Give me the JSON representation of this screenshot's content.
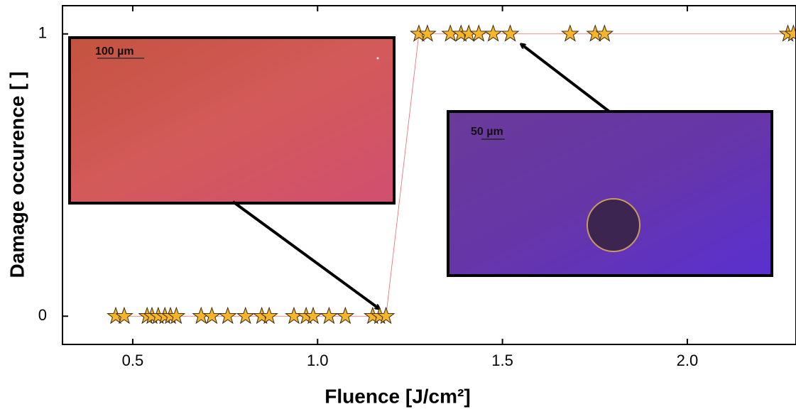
{
  "chart_data": {
    "type": "scatter",
    "x_label": "Fluence [J/cm²]",
    "y_label": "Damage occurence [ ]",
    "x": [
      0.454,
      0.477,
      0.539,
      0.552,
      0.569,
      0.587,
      0.602,
      0.618,
      0.685,
      0.714,
      0.757,
      0.805,
      0.849,
      0.869,
      0.936,
      0.969,
      0.988,
      1.031,
      1.075,
      1.149,
      1.168,
      1.185,
      1.274,
      1.297,
      1.359,
      1.388,
      1.409,
      1.436,
      1.475,
      1.521,
      1.683,
      1.751,
      1.776,
      2.272,
      2.287
    ],
    "values": [
      0,
      0,
      0,
      0,
      0,
      0,
      0,
      0,
      0,
      0,
      0,
      0,
      0,
      0,
      0,
      0,
      0,
      0,
      0,
      0,
      0,
      0,
      1,
      1,
      1,
      1,
      1,
      1,
      1,
      1,
      1,
      1,
      1,
      1,
      1
    ],
    "color": "#f7b52c",
    "line_color": "#e36a6a",
    "xlim": [
      0.31,
      2.294
    ],
    "ylim": [
      -0.1,
      1.1
    ],
    "xticks": [
      0.5,
      {
        "value": 1,
        "label": "1.0"
      },
      1.5,
      {
        "value": 2,
        "label": "2.0"
      }
    ],
    "yticks": [
      0,
      1
    ],
    "insets": [
      {
        "scale_label": "100 µm"
      },
      {
        "scale_label": "50 µm"
      }
    ]
  }
}
